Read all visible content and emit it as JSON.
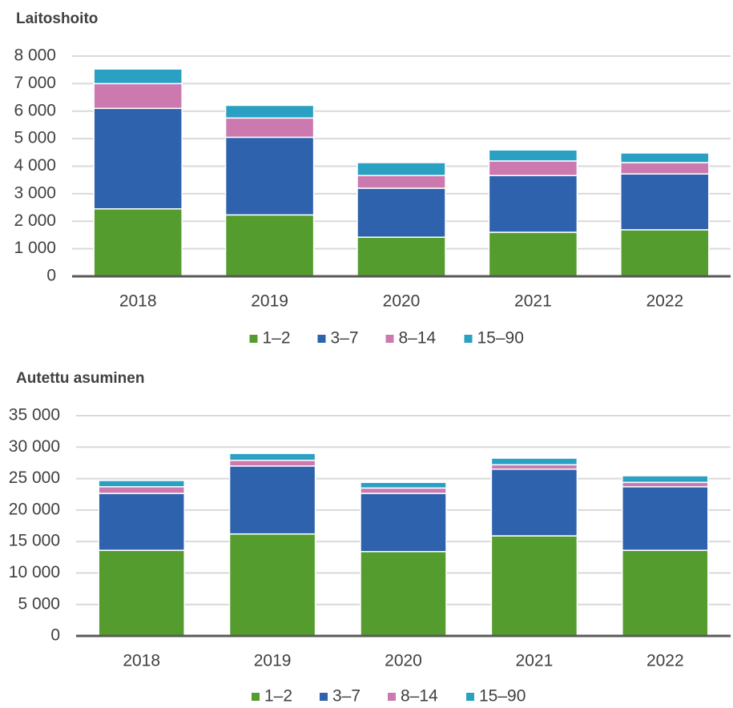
{
  "chart_data": [
    {
      "type": "bar",
      "stacked": true,
      "title": "Laitoshoito",
      "categories": [
        "2018",
        "2019",
        "2020",
        "2021",
        "2022"
      ],
      "series": [
        {
          "name": "1–2",
          "color": "#559c2e",
          "values": [
            2450,
            2230,
            1420,
            1600,
            1690
          ]
        },
        {
          "name": "3–7",
          "color": "#2e62ad",
          "values": [
            3650,
            2820,
            1780,
            2060,
            2030
          ]
        },
        {
          "name": "8–14",
          "color": "#cc79b0",
          "values": [
            900,
            700,
            460,
            530,
            410
          ]
        },
        {
          "name": "15–90",
          "color": "#2aa0c3",
          "values": [
            530,
            460,
            470,
            400,
            350
          ]
        }
      ],
      "ylim": [
        0,
        8000
      ],
      "yticks": [
        0,
        {
          "value": 1000,
          "label": "1 000"
        },
        {
          "value": 2000,
          "label": "2 000"
        },
        {
          "value": 3000,
          "label": "3 000"
        },
        {
          "value": 4000,
          "label": "4 000"
        },
        {
          "value": 5000,
          "label": "5 000"
        },
        {
          "value": 6000,
          "label": "6 000"
        },
        {
          "value": 7000,
          "label": "7 000"
        },
        {
          "value": 8000,
          "label": "8 000"
        }
      ],
      "grid": true,
      "legend": "bottom"
    },
    {
      "type": "bar",
      "stacked": true,
      "title": "Autettu asuminen",
      "categories": [
        "2018",
        "2019",
        "2020",
        "2021",
        "2022"
      ],
      "series": [
        {
          "name": "1–2",
          "color": "#559c2e",
          "values": [
            13600,
            16200,
            13400,
            15900,
            13600
          ]
        },
        {
          "name": "3–7",
          "color": "#2e62ad",
          "values": [
            9050,
            10800,
            9250,
            10600,
            10100
          ]
        },
        {
          "name": "8–14",
          "color": "#cc79b0",
          "values": [
            1050,
            900,
            850,
            700,
            700
          ]
        },
        {
          "name": "15–90",
          "color": "#2aa0c3",
          "values": [
            1000,
            1100,
            900,
            1050,
            1050
          ]
        }
      ],
      "ylim": [
        0,
        35000
      ],
      "yticks": [
        0,
        {
          "value": 5000,
          "label": "5 000"
        },
        {
          "value": 10000,
          "label": "10 000"
        },
        {
          "value": 15000,
          "label": "15 000"
        },
        {
          "value": 20000,
          "label": "20 000"
        },
        {
          "value": 25000,
          "label": "25 000"
        },
        {
          "value": 30000,
          "label": "30 000"
        },
        {
          "value": 35000,
          "label": "35 000"
        }
      ],
      "grid": true,
      "legend": "bottom"
    }
  ]
}
